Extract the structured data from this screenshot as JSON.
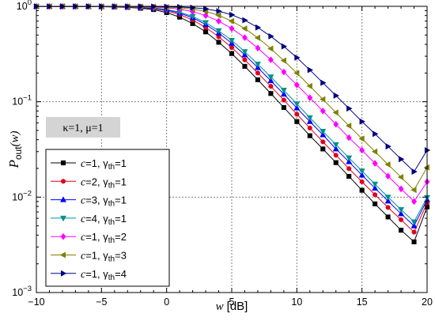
{
  "chart_data": {
    "type": "line",
    "title": "",
    "xlabel": {
      "var": "w",
      "unit": "[dB]"
    },
    "ylabel": {
      "main": "P",
      "sub": "out",
      "arg": "(w)"
    },
    "xlim": [
      -10,
      20
    ],
    "ylim": [
      0.001,
      1
    ],
    "yscale": "log",
    "grid": true,
    "legend_position": "bottom-left",
    "x_ticks": [
      -10,
      -5,
      0,
      5,
      10,
      15,
      20
    ],
    "x_tick_labels": [
      "−10",
      "−5",
      "0",
      "5",
      "10",
      "15",
      "20"
    ],
    "y_ticks": [
      {
        "mant": "10",
        "exp": "0",
        "value": 1
      },
      {
        "mant": "10",
        "exp": "−1",
        "value": 0.1
      },
      {
        "mant": "10",
        "exp": "−2",
        "value": 0.01
      },
      {
        "mant": "10",
        "exp": "−3",
        "value": 0.001
      }
    ],
    "annotation": "κ=1, μ=1",
    "x": [
      -10,
      -9,
      -8,
      -7,
      -6,
      -5,
      -4,
      -3,
      -2,
      -1,
      0,
      1,
      2,
      3,
      4,
      5,
      6,
      7,
      8,
      9,
      10,
      11,
      12,
      13,
      14,
      15,
      16,
      17,
      18,
      19,
      20
    ],
    "series": [
      {
        "label_c": "c=1",
        "label_g": "=1",
        "color": "#000000",
        "marker": "square",
        "values": [
          0.998,
          0.997,
          0.996,
          0.995,
          0.993,
          0.99,
          0.984,
          0.975,
          0.955,
          0.925,
          0.86,
          0.77,
          0.66,
          0.54,
          0.42,
          0.32,
          0.235,
          0.17,
          0.122,
          0.087,
          0.062,
          0.044,
          0.032,
          0.023,
          0.0165,
          0.0118,
          0.0085,
          0.0062,
          0.0045,
          0.0034,
          0.0079
        ]
      },
      {
        "label_c": "c=2",
        "label_g": "=1",
        "color": "#e0001b",
        "marker": "circle",
        "values": [
          0.998,
          0.997,
          0.996,
          0.995,
          0.994,
          0.992,
          0.988,
          0.982,
          0.97,
          0.945,
          0.895,
          0.82,
          0.72,
          0.6,
          0.48,
          0.37,
          0.275,
          0.2,
          0.145,
          0.104,
          0.074,
          0.053,
          0.038,
          0.0275,
          0.0199,
          0.0145,
          0.0106,
          0.0078,
          0.0058,
          0.0043,
          0.0087
        ]
      },
      {
        "label_c": "c=3",
        "label_g": "=1",
        "color": "#0000ff",
        "marker": "triangle-up",
        "values": [
          0.998,
          0.997,
          0.997,
          0.996,
          0.995,
          0.993,
          0.99,
          0.985,
          0.975,
          0.955,
          0.915,
          0.85,
          0.76,
          0.645,
          0.525,
          0.41,
          0.31,
          0.228,
          0.166,
          0.12,
          0.086,
          0.062,
          0.045,
          0.032,
          0.0235,
          0.017,
          0.0124,
          0.0091,
          0.0067,
          0.005,
          0.0094
        ]
      },
      {
        "label_c": "c=4",
        "label_g": "=1",
        "color": "#009090",
        "marker": "triangle-down",
        "values": [
          0.998,
          0.998,
          0.997,
          0.996,
          0.995,
          0.994,
          0.991,
          0.987,
          0.978,
          0.962,
          0.928,
          0.87,
          0.785,
          0.675,
          0.555,
          0.44,
          0.335,
          0.248,
          0.182,
          0.132,
          0.095,
          0.068,
          0.049,
          0.0355,
          0.0258,
          0.0188,
          0.0137,
          0.01,
          0.0074,
          0.0055,
          0.0099
        ]
      },
      {
        "label_c": "c=1",
        "label_g": "=2",
        "color": "#ff00ff",
        "marker": "diamond",
        "values": [
          0.999,
          0.998,
          0.998,
          0.997,
          0.997,
          0.996,
          0.995,
          0.992,
          0.988,
          0.98,
          0.965,
          0.935,
          0.88,
          0.8,
          0.7,
          0.585,
          0.47,
          0.365,
          0.275,
          0.205,
          0.15,
          0.11,
          0.08,
          0.058,
          0.042,
          0.031,
          0.0226,
          0.0166,
          0.0122,
          0.009,
          0.0145
        ]
      },
      {
        "label_c": "c=1",
        "label_g": "=3",
        "color": "#808000",
        "marker": "triangle-left",
        "values": [
          0.999,
          0.999,
          0.999,
          0.998,
          0.998,
          0.998,
          0.997,
          0.996,
          0.994,
          0.99,
          0.982,
          0.966,
          0.936,
          0.885,
          0.805,
          0.7,
          0.585,
          0.468,
          0.36,
          0.27,
          0.2,
          0.146,
          0.106,
          0.077,
          0.056,
          0.041,
          0.03,
          0.022,
          0.0162,
          0.0119,
          0.0205
        ]
      },
      {
        "label_c": "c=1",
        "label_g": "=4",
        "color": "#000080",
        "marker": "triangle-right",
        "values": [
          0.999,
          0.999,
          0.999,
          0.999,
          0.999,
          0.999,
          0.998,
          0.998,
          0.997,
          0.995,
          0.991,
          0.983,
          0.968,
          0.94,
          0.89,
          0.815,
          0.715,
          0.6,
          0.485,
          0.38,
          0.29,
          0.215,
          0.158,
          0.116,
          0.085,
          0.062,
          0.046,
          0.034,
          0.025,
          0.0185,
          0.031
        ]
      }
    ],
    "legend_symbol": "γ",
    "legend_subscript": "th"
  }
}
